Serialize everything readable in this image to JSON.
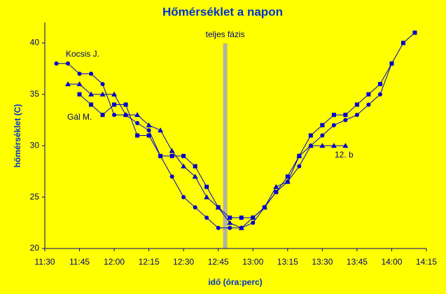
{
  "chart_data": {
    "type": "line",
    "title": "Hőmérséklet a napon",
    "x_label": "idő (óra:perc)",
    "y_label": "hőmérséklet (C)",
    "xlim": [
      690,
      855
    ],
    "xticks": [
      {
        "value": 690,
        "label": "11:30"
      },
      {
        "value": 705,
        "label": "11:45"
      },
      {
        "value": 720,
        "label": "12:00"
      },
      {
        "value": 735,
        "label": "12:15"
      },
      {
        "value": 750,
        "label": "12:30"
      },
      {
        "value": 765,
        "label": "12:45"
      },
      {
        "value": 780,
        "label": "13:00"
      },
      {
        "value": 795,
        "label": "13:15"
      },
      {
        "value": 810,
        "label": "13:30"
      },
      {
        "value": 825,
        "label": "13:45"
      },
      {
        "value": 840,
        "label": "14:00"
      },
      {
        "value": 855,
        "label": "14:15"
      }
    ],
    "ylim": [
      20,
      42
    ],
    "yticks": [
      20,
      25,
      30,
      35,
      40
    ],
    "annotations": [
      {
        "text": "teljes fázis",
        "x": 768
      }
    ],
    "series": [
      {
        "name": "Kocsis J.",
        "color": "#0000cc",
        "marker": "circle",
        "x": [
          695,
          700,
          705,
          710,
          715,
          720,
          725,
          730,
          735,
          740,
          745,
          750,
          755,
          760,
          765,
          770,
          775,
          780,
          785,
          790,
          795,
          800,
          805,
          810,
          815,
          820,
          825,
          830,
          835,
          840
        ],
        "values": [
          38,
          38,
          37,
          37,
          36,
          33,
          33,
          32.2,
          31.5,
          29,
          27,
          25,
          24,
          23,
          22,
          22,
          22,
          22.5,
          24,
          25.5,
          26.5,
          28,
          30,
          31,
          32,
          32.5,
          33,
          34,
          35,
          38
        ]
      },
      {
        "name": "Gál M.",
        "color": "#0000cc",
        "marker": "square",
        "x": [
          705,
          710,
          715,
          720,
          725,
          730,
          735,
          740,
          745,
          750,
          755,
          760,
          765,
          770,
          775,
          780,
          785,
          790,
          795,
          800,
          805,
          810,
          815,
          820,
          825,
          830,
          835,
          840,
          845,
          850
        ],
        "values": [
          35,
          34,
          33,
          34,
          34,
          31,
          31,
          29,
          29,
          29,
          28,
          26,
          24,
          23,
          23,
          23,
          24,
          25.5,
          27,
          29,
          31,
          32,
          33,
          33,
          34,
          35,
          36,
          38,
          40,
          41
        ]
      },
      {
        "name": "12. b",
        "color": "#0000cc",
        "marker": "triangle",
        "x": [
          700,
          705,
          710,
          715,
          720,
          725,
          730,
          735,
          740,
          745,
          750,
          755,
          760,
          765,
          770,
          775,
          780,
          785,
          790,
          795,
          800,
          805,
          810,
          815,
          820
        ],
        "values": [
          36,
          36,
          35,
          35,
          35,
          33,
          33,
          32,
          31.5,
          29.5,
          28,
          27,
          25,
          24,
          22.5,
          22,
          23,
          24,
          26,
          26.5,
          29,
          30,
          30,
          30,
          30
        ]
      }
    ]
  }
}
